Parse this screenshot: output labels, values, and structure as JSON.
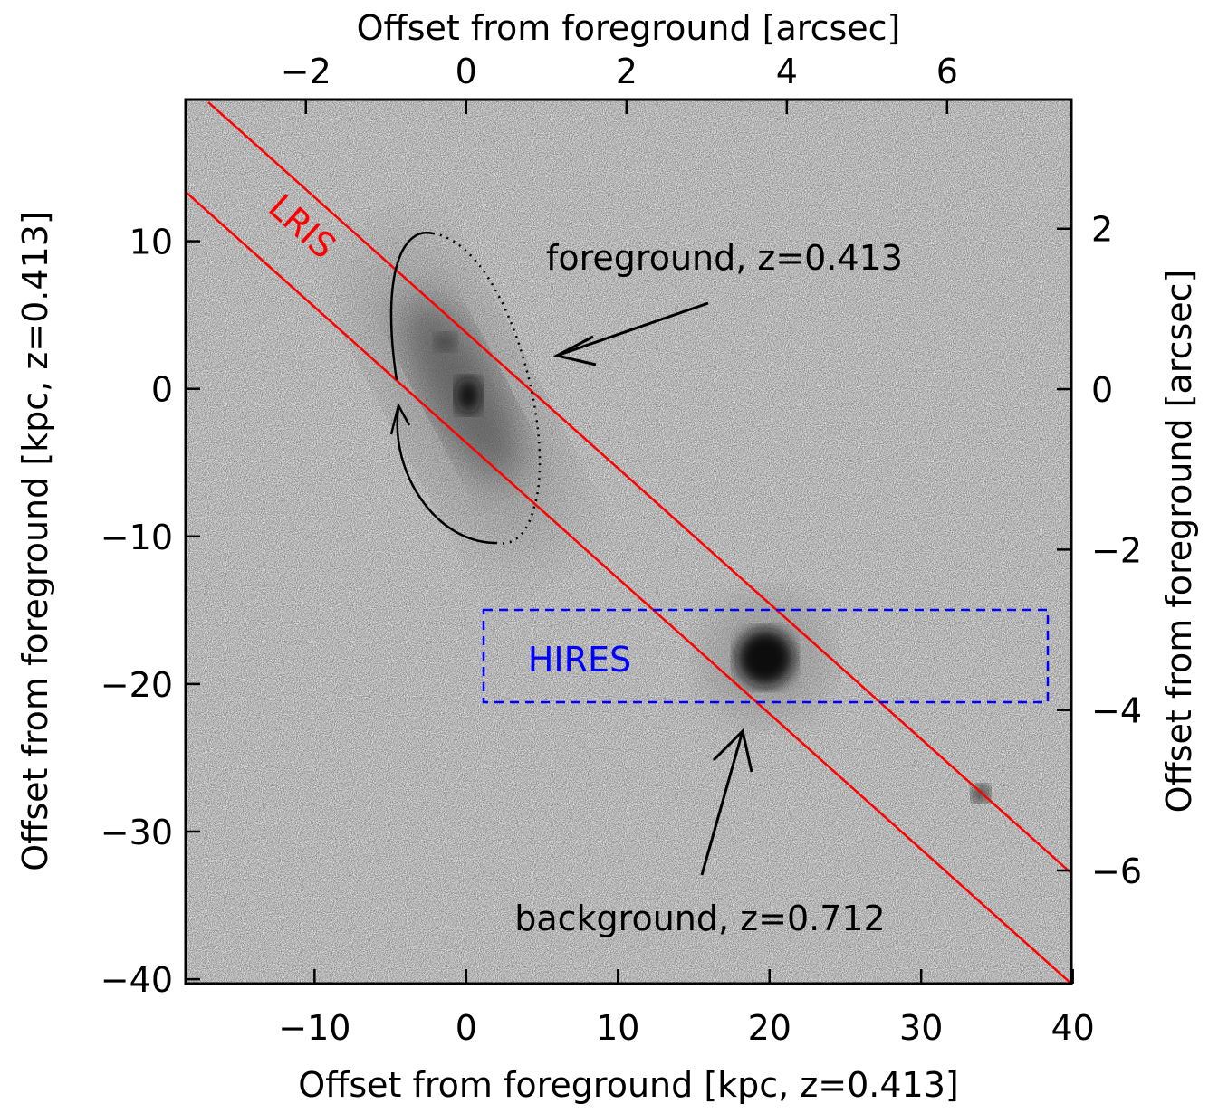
{
  "chart_data": {
    "type": "image",
    "xlabel": "Offset from foreground [kpc, z=0.413]",
    "ylabel": "Offset from foreground [kpc, z=0.413]",
    "x2label": "Offset from foreground [arcsec]",
    "y2label": "Offset from foreground [arcsec]",
    "xlim": [
      -18.5,
      39.9
    ],
    "xticks": [
      {
        "value": -10,
        "label": "−10"
      },
      0,
      10,
      20,
      30,
      40
    ],
    "ylim": [
      -40.3,
      19.6
    ],
    "yticks": [
      {
        "value": -40,
        "label": "−40"
      },
      {
        "value": -30,
        "label": "−30"
      },
      {
        "value": -20,
        "label": "−20"
      },
      {
        "value": -10,
        "label": "−10"
      },
      0,
      10
    ],
    "x2lim": [
      -3.5,
      7.55
    ],
    "x2ticks": [
      {
        "value": -2,
        "label": "−2"
      },
      0,
      2,
      4,
      6
    ],
    "y2lim": [
      -7.41,
      3.61
    ],
    "y2ticks": [
      {
        "value": -6,
        "label": "−6"
      },
      {
        "value": -4,
        "label": "−4"
      },
      {
        "value": -2,
        "label": "−2"
      },
      0,
      2
    ],
    "annotations": [
      "LRIS",
      "HIRES",
      "foreground, z=0.413",
      "background, z=0.712"
    ]
  }
}
